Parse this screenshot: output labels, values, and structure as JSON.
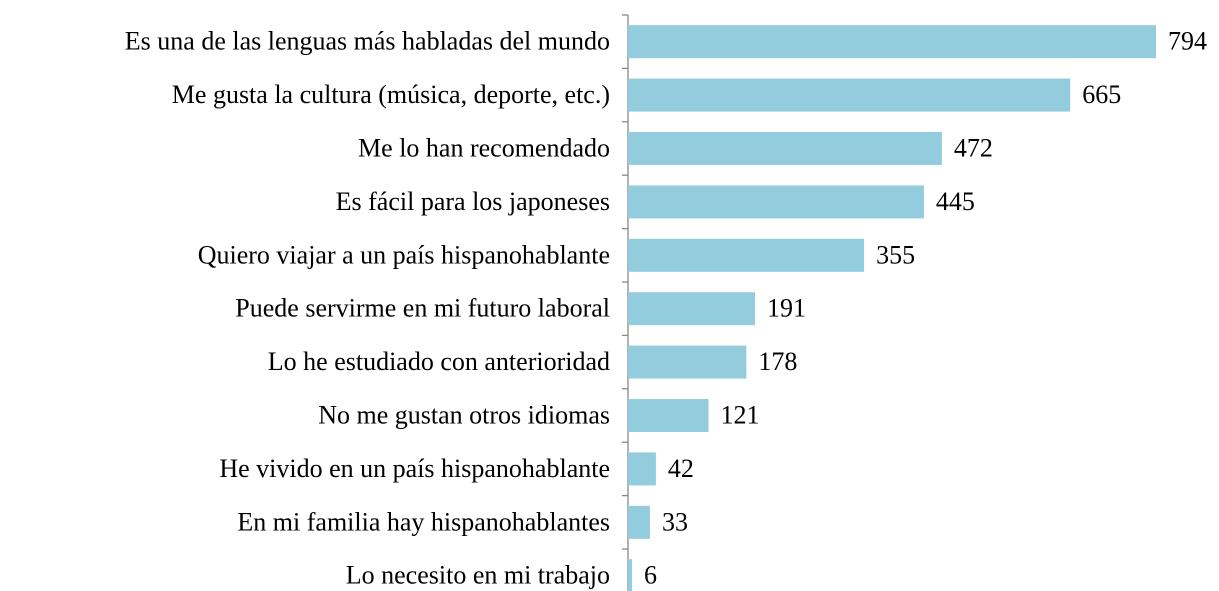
{
  "chart_data": {
    "type": "hbar",
    "categories": [
      "Es una de las lenguas más habladas del mundo",
      "Me gusta la cultura (música, deporte, etc.)",
      "Me lo han recomendado",
      "Es fácil para los japoneses",
      "Quiero viajar a un país hispanohablante",
      "Puede servirme en mi futuro laboral",
      "Lo he estudiado con anterioridad",
      "No me gustan otros idiomas",
      "He vivido en un país hispanohablante",
      "En mi familia hay hispanohablantes",
      "Lo necesito en mi trabajo"
    ],
    "values": [
      794,
      665,
      472,
      445,
      355,
      191,
      178,
      121,
      42,
      33,
      6
    ],
    "color": "#93cddd"
  }
}
